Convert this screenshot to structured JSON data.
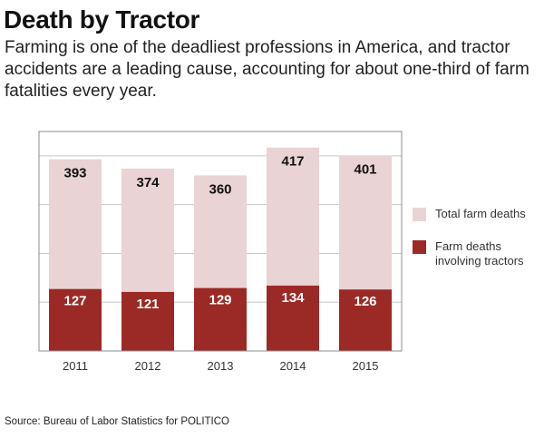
{
  "title": "Death by Tractor",
  "subtitle": "Farming is one of the deadliest professions in America, and tractor accidents are a leading cause, accounting for about one-third of farm fatalities every year.",
  "source": "Source: Bureau of Labor Statistics for POLITICO",
  "colors": {
    "total": "#ead3d4",
    "tractor": "#9b2a26",
    "grid": "#c8c8c8",
    "frame": "#8c8c8c"
  },
  "chart_data": {
    "type": "bar",
    "categories": [
      "2011",
      "2012",
      "2013",
      "2014",
      "2015"
    ],
    "series": [
      {
        "name": "Total farm deaths",
        "values": [
          393,
          374,
          360,
          417,
          401
        ],
        "color": "#ead3d4"
      },
      {
        "name": "Farm deaths involving tractors",
        "values": [
          127,
          121,
          129,
          134,
          126
        ],
        "color": "#9b2a26"
      }
    ],
    "ylim": [
      0,
      450
    ],
    "grid": true,
    "legend_position": "right"
  },
  "legend": {
    "total_label": "Total farm deaths",
    "tractor_label": "Farm deaths involving tractors"
  }
}
